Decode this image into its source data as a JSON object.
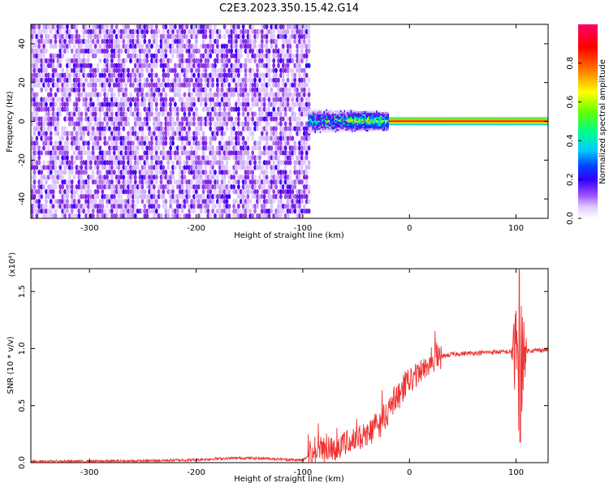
{
  "title": "C2E3.2023.350.15.42.G14",
  "chart_data": [
    {
      "type": "heatmap",
      "xlabel": "Height of straight line (km)",
      "ylabel": "Frequency (Hz)",
      "xlim": [
        -355,
        130
      ],
      "ylim": [
        -50,
        50
      ],
      "x_ticks": [
        -300,
        -200,
        -100,
        0,
        100
      ],
      "y_ticks": [
        -40,
        -20,
        0,
        20,
        40
      ],
      "colorbar": {
        "label": "Normalized spectral amplitude",
        "range": [
          0,
          1
        ],
        "ticks": [
          "0.0",
          "0.2",
          "0.4",
          "0.6",
          "0.8"
        ],
        "colormap": [
          "#ffffff",
          "#d9c2ff",
          "#8a2be2",
          "#3300ff",
          "#0044ff",
          "#00ccff",
          "#00ff66",
          "#aaff00",
          "#ffff00",
          "#ff8800",
          "#ff0000",
          "#ff0088"
        ]
      },
      "regions": [
        {
          "name": "noise",
          "x_range": [
            -355,
            -95
          ],
          "freq_range": [
            -50,
            50
          ],
          "amplitude": "low (0.05-0.25)"
        },
        {
          "name": "signal",
          "x_range": [
            -95,
            130
          ],
          "center_frequency": 0,
          "amplitude": "rising to 1.0 above x=-20"
        }
      ]
    },
    {
      "type": "line",
      "xlabel": "Height of straight line (km)",
      "ylabel": "SNR (10 * v/v)",
      "y_multiplier": "(x10⁴)",
      "xlim": [
        -355,
        130
      ],
      "ylim": [
        0,
        1.7
      ],
      "x_ticks": [
        -300,
        -200,
        -100,
        0,
        100
      ],
      "y_ticks": [
        "0.0",
        "0.5",
        "1.0",
        "1.5"
      ],
      "series_color": "#ee3333",
      "envelope_x": [
        -355,
        -300,
        -250,
        -200,
        -180,
        -160,
        -150,
        -130,
        -110,
        -100,
        -90,
        -80,
        -70,
        -60,
        -50,
        -40,
        -30,
        -20,
        -10,
        0,
        10,
        20,
        30,
        40,
        60,
        80,
        95,
        100,
        105,
        110,
        130
      ],
      "envelope_y": [
        0.01,
        0.012,
        0.015,
        0.025,
        0.035,
        0.04,
        0.04,
        0.035,
        0.025,
        0.02,
        0.1,
        0.12,
        0.14,
        0.17,
        0.2,
        0.25,
        0.32,
        0.45,
        0.6,
        0.7,
        0.8,
        0.88,
        0.93,
        0.95,
        0.96,
        0.97,
        0.97,
        0.97,
        0.97,
        0.98,
        0.99
      ]
    }
  ]
}
